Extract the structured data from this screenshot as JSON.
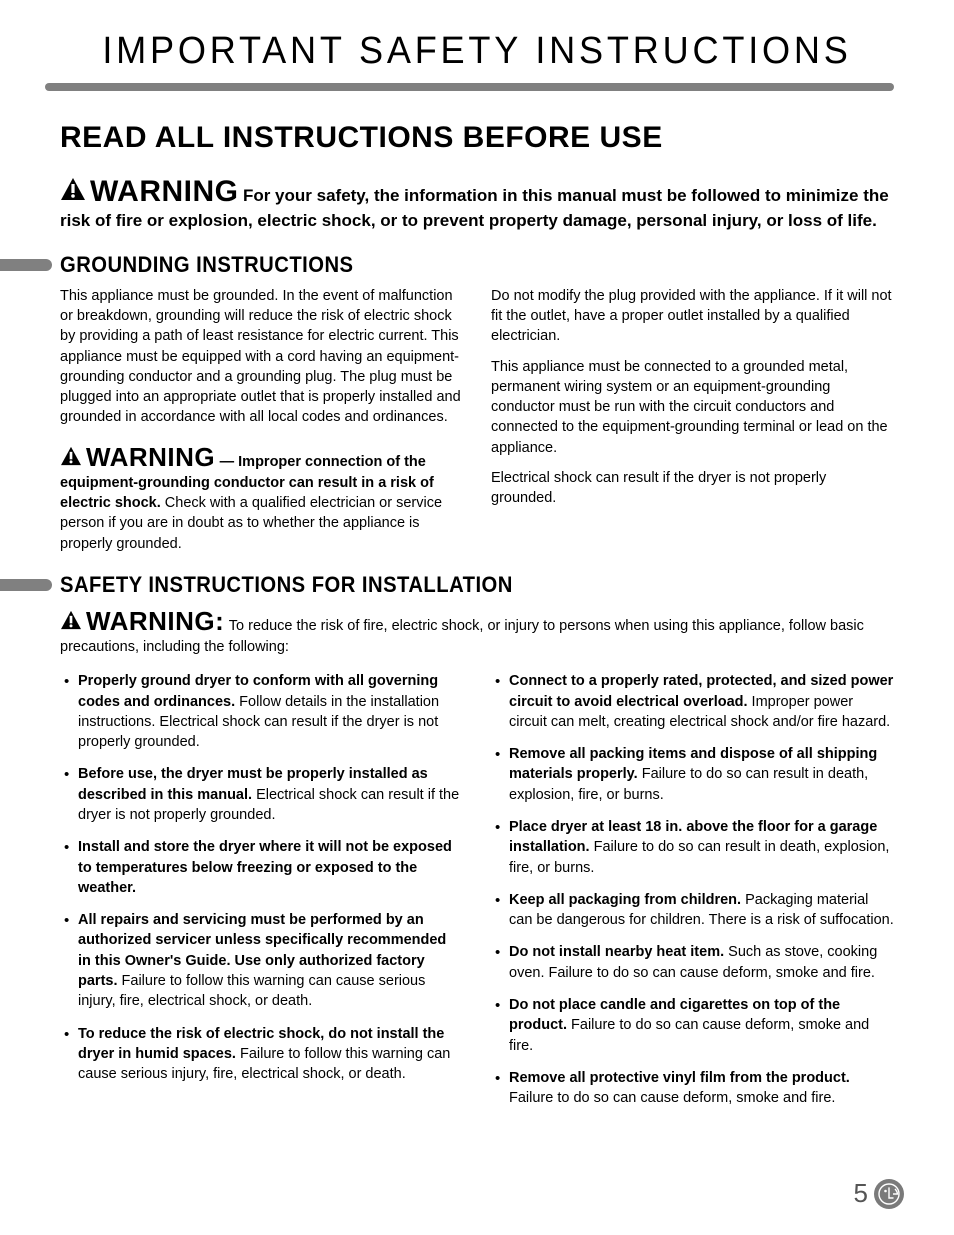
{
  "document": {
    "main_title": "IMPORTANT SAFETY INSTRUCTIONS",
    "read_all_heading": "READ ALL INSTRUCTIONS BEFORE USE",
    "warning_label": "WARNING",
    "warning_label_colon": "WARNING:",
    "top_warning_text": "For your safety, the information in this manual must be followed to minimize the risk of fire or explosion, electric shock, or to prevent property damage, personal injury, or loss of life.",
    "page_number": "5"
  },
  "colors": {
    "text": "#000000",
    "bar_gray": "#808080",
    "page_num": "#555555",
    "logo_bg": "#7a7a7a",
    "logo_fg": "#ffffff"
  },
  "typography": {
    "main_title_fontsize": 38,
    "read_all_fontsize": 30,
    "warning_label_fontsize": 30,
    "warning_label_sm_fontsize": 26,
    "section_title_fontsize": 22,
    "body_fontsize": 14.5,
    "lead_fontsize": 17
  },
  "grounding": {
    "heading": "GROUNDING INSTRUCTIONS",
    "left_para": "This appliance must be grounded. In the event of malfunction or breakdown, grounding will reduce the risk of electric shock by providing a path of least resistance for electric current. This appliance must be equipped with a cord having an equipment-grounding conductor and a grounding plug. The plug must be plugged into an appropriate outlet that is properly installed and grounded in accordance with all local codes and ordinances.",
    "warning_bold_lead": "— Improper connection of the equipment-grounding conductor can result in a risk of electric shock.",
    "warning_rest": " Check with a qualified electrician or service person if you are in doubt as to whether the appliance is properly grounded.",
    "right_p1": "Do not modify the plug provided with the appliance. If it will not fit the outlet, have a proper outlet installed by a qualified electrician.",
    "right_p2": "This appliance must be connected to a grounded metal, permanent wiring system or an equipment-grounding conductor must be run with the circuit conductors and connected to the equipment-grounding terminal or lead on the appliance.",
    "right_p3": "Electrical shock can result if the dryer is not properly grounded."
  },
  "installation": {
    "heading": "SAFETY INSTRUCTIONS FOR INSTALLATION",
    "warning_intro": " To reduce the risk of fire, electric shock, or injury to persons when using this appliance, follow basic precautions, including the following:",
    "left_items": [
      {
        "bold": "Properly ground dryer to conform with all governing codes and ordinances.",
        "rest": " Follow details in the installation instructions. Electrical shock can result if the dryer is not properly grounded."
      },
      {
        "bold": "Before use, the dryer must be properly installed as described in this manual.",
        "rest": " Electrical shock can result if the dryer is not properly grounded."
      },
      {
        "bold": "Install and store the dryer where it will not be exposed to temperatures below freezing or exposed to the weather.",
        "rest": ""
      },
      {
        "bold": "All repairs and servicing must be performed by an authorized servicer unless specifically recommended in this Owner's Guide. Use only authorized factory parts.",
        "rest": " Failure to follow this warning can cause serious injury, fire, electrical shock, or death."
      },
      {
        "bold": "To reduce the risk of electric shock, do not install the dryer in humid spaces.",
        "rest": " Failure to follow this warning can cause serious injury, fire, electrical shock, or death."
      }
    ],
    "right_items": [
      {
        "bold": "Connect to a properly rated, protected, and sized power circuit to avoid electrical overload.",
        "rest": " Improper power circuit can melt, creating electrical shock and/or fire hazard."
      },
      {
        "bold": "Remove all packing items and dispose of all shipping materials properly.",
        "rest": " Failure to do so can result in death, explosion, fire, or burns."
      },
      {
        "bold": "Place dryer at least 18 in. above the floor for a garage installation.",
        "rest": " Failure to do so can result in death, explosion, fire, or burns."
      },
      {
        "bold": "Keep all packaging from children.",
        "rest": " Packaging material can be dangerous for children. There is a risk of suffocation."
      },
      {
        "bold": "Do not install nearby heat item.",
        "rest": " Such as stove, cooking oven. Failure to do so can cause deform, smoke and fire."
      },
      {
        "bold": "Do not place candle and cigarettes on top of the product.",
        "rest": " Failure to do so can cause deform, smoke and fire."
      },
      {
        "bold": "Remove all protective vinyl film from the product.",
        "rest": "  Failure to do so can cause deform, smoke and fire."
      }
    ]
  }
}
